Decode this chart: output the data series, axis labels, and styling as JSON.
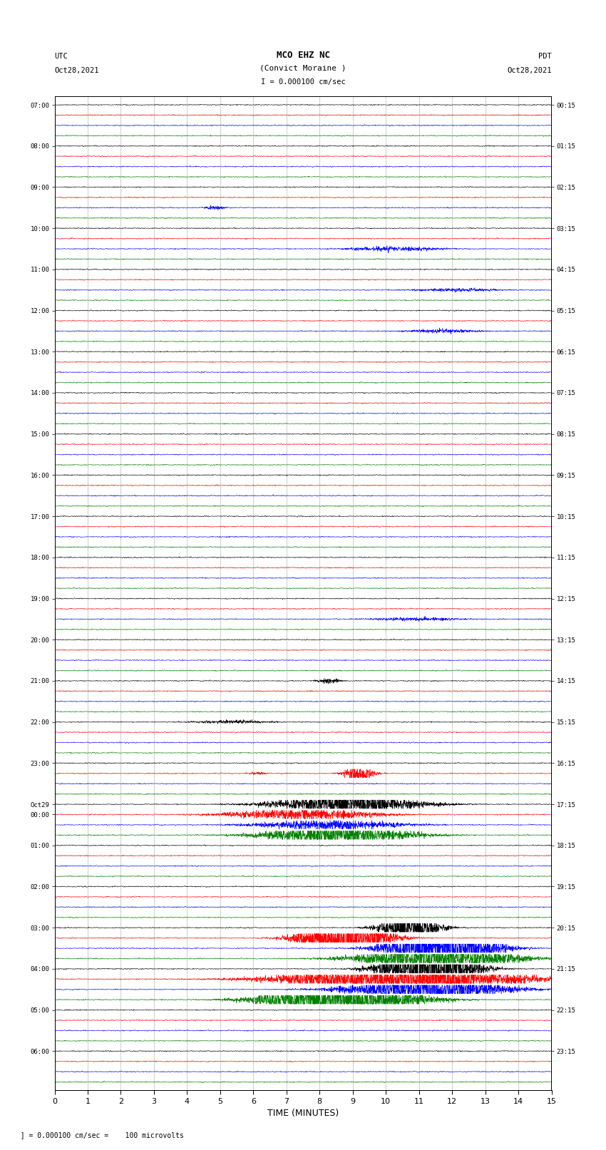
{
  "title_line1": "MCO EHZ NC",
  "title_line2": "(Convict Moraine )",
  "scale_label": "I = 0.000100 cm/sec",
  "left_header_line1": "UTC",
  "left_header_line2": "Oct28,2021",
  "right_header_line1": "PDT",
  "right_header_line2": "Oct28,2021",
  "xlabel": "TIME (MINUTES)",
  "bottom_note": "  ] = 0.000100 cm/sec =    100 microvolts",
  "utc_labels": {
    "0": "07:00",
    "4": "08:00",
    "8": "09:00",
    "12": "10:00",
    "16": "11:00",
    "20": "12:00",
    "24": "13:00",
    "28": "14:00",
    "32": "15:00",
    "36": "16:00",
    "40": "17:00",
    "44": "18:00",
    "48": "19:00",
    "52": "20:00",
    "56": "21:00",
    "60": "22:00",
    "64": "23:00",
    "68": "Oct29",
    "69": "00:00",
    "72": "01:00",
    "76": "02:00",
    "80": "03:00",
    "84": "04:00",
    "88": "05:00",
    "92": "06:00"
  },
  "pdt_labels": {
    "0": "00:15",
    "4": "01:15",
    "8": "02:15",
    "12": "03:15",
    "16": "04:15",
    "20": "05:15",
    "24": "06:15",
    "28": "07:15",
    "32": "08:15",
    "36": "09:15",
    "40": "10:15",
    "44": "11:15",
    "48": "12:15",
    "52": "13:15",
    "56": "14:15",
    "60": "15:15",
    "64": "16:15",
    "68": "17:15",
    "72": "18:15",
    "76": "19:15",
    "80": "20:15",
    "84": "21:15",
    "88": "22:15",
    "92": "23:15"
  },
  "n_trace_rows": 96,
  "colors": [
    "black",
    "red",
    "blue",
    "green"
  ],
  "x_ticks": [
    0,
    1,
    2,
    3,
    4,
    5,
    6,
    7,
    8,
    9,
    10,
    11,
    12,
    13,
    14,
    15
  ],
  "x_lim": [
    0,
    15
  ],
  "bg_color": "white",
  "noise_amp_base": 0.1,
  "seed": 42
}
